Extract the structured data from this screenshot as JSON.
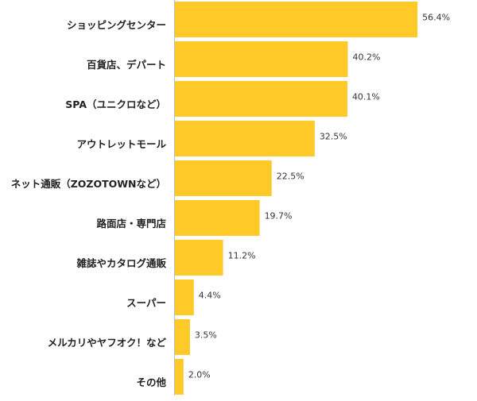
{
  "chart_data": {
    "type": "bar",
    "orientation": "horizontal",
    "color": "#ffc928",
    "categories": [
      "ショッピングセンター",
      "百貨店、デパート",
      "SPA（ユニクロなど）",
      "アウトレットモール",
      "ネット通販（ZOZOTOWNなど）",
      "路面店・専門店",
      "雑誌やカタログ通販",
      "スーパー",
      "メルカリやヤフオク！など",
      "その他"
    ],
    "values": [
      56.4,
      40.2,
      40.1,
      32.5,
      22.5,
      19.7,
      11.2,
      4.4,
      3.5,
      2.0
    ],
    "value_labels": [
      "56.4%",
      "40.2%",
      "40.1%",
      "32.5%",
      "22.5%",
      "19.7%",
      "11.2%",
      "4.4%",
      "3.5%",
      "2.0%"
    ]
  }
}
